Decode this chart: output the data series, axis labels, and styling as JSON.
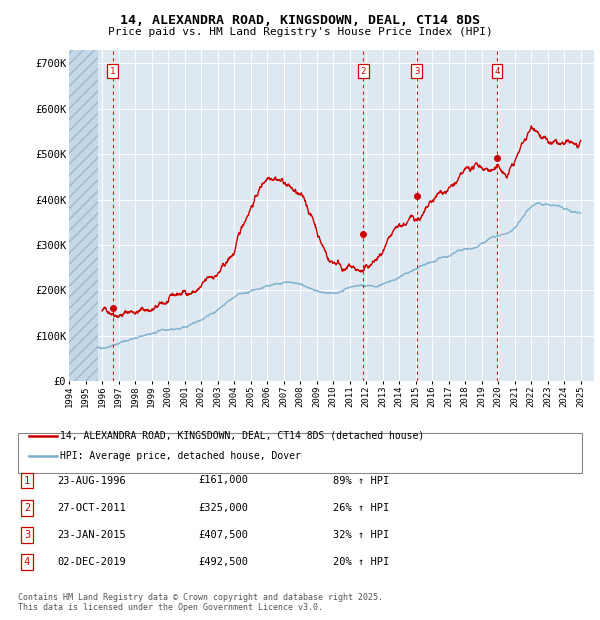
{
  "title": "14, ALEXANDRA ROAD, KINGSDOWN, DEAL, CT14 8DS",
  "subtitle": "Price paid vs. HM Land Registry's House Price Index (HPI)",
  "ylim": [
    0,
    730000
  ],
  "yticks": [
    0,
    100000,
    200000,
    300000,
    400000,
    500000,
    600000,
    700000
  ],
  "ytick_labels": [
    "£0",
    "£100K",
    "£200K",
    "£300K",
    "£400K",
    "£500K",
    "£600K",
    "£700K"
  ],
  "xlim_start": 1994.0,
  "xlim_end": 2025.8,
  "hatch_end": 1995.75,
  "sale_events": [
    {
      "num": 1,
      "year": 1996.65,
      "price": 161000,
      "date": "23-AUG-1996",
      "pct": "89%",
      "label": "£161,000"
    },
    {
      "num": 2,
      "year": 2011.83,
      "price": 325000,
      "date": "27-OCT-2011",
      "pct": "26%",
      "label": "£325,000"
    },
    {
      "num": 3,
      "year": 2015.07,
      "price": 407500,
      "date": "23-JAN-2015",
      "pct": "32%",
      "label": "£407,500"
    },
    {
      "num": 4,
      "year": 2019.92,
      "price": 492500,
      "date": "02-DEC-2019",
      "pct": "20%",
      "label": "£492,500"
    }
  ],
  "legend_line1": "14, ALEXANDRA ROAD, KINGSDOWN, DEAL, CT14 8DS (detached house)",
  "legend_line2": "HPI: Average price, detached house, Dover",
  "footer": "Contains HM Land Registry data © Crown copyright and database right 2025.\nThis data is licensed under the Open Government Licence v3.0.",
  "red_color": "#cc0000",
  "blue_color": "#7aaccc",
  "grid_color": "#ffffff",
  "plot_bg": "#dde8f0"
}
